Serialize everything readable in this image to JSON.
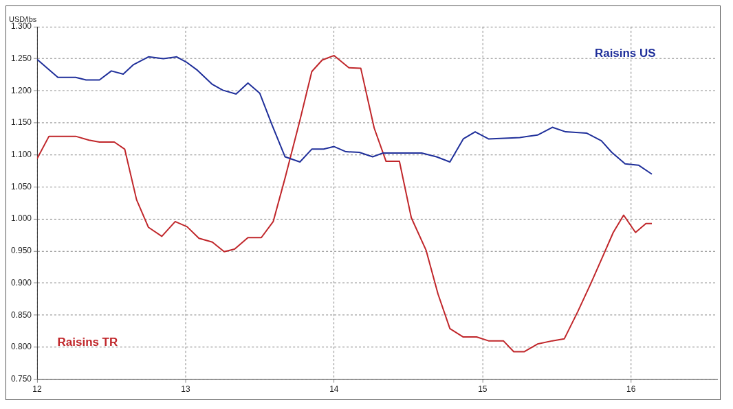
{
  "chart_data": {
    "type": "line",
    "ylabel": "USD/lbs",
    "xlim": [
      12,
      16.58
    ],
    "xticks": [
      12,
      13,
      14,
      15,
      16
    ],
    "ylim": [
      0.75,
      1.3
    ],
    "yticks": [
      {
        "value": 0.75,
        "label": "0.750"
      },
      {
        "value": 0.8,
        "label": "0.800"
      },
      {
        "value": 0.85,
        "label": "0.850"
      },
      {
        "value": 0.9,
        "label": "0.900"
      },
      {
        "value": 0.95,
        "label": "0.950"
      },
      {
        "value": 1.0,
        "label": "1.000"
      },
      {
        "value": 1.05,
        "label": "1.050"
      },
      {
        "value": 1.1,
        "label": "1.100"
      },
      {
        "value": 1.15,
        "label": "1.150"
      },
      {
        "value": 1.2,
        "label": "1.200"
      },
      {
        "value": 1.25,
        "label": "1.250"
      },
      {
        "value": 1.3,
        "label": "1.300"
      }
    ],
    "grid": true,
    "legend": false,
    "marker": "none",
    "line_style": "solid",
    "series": [
      {
        "name": "Raisins US",
        "color": "#1f2f9a",
        "x": [
          12.0,
          12.14,
          12.26,
          12.33,
          12.42,
          12.5,
          12.58,
          12.65,
          12.75,
          12.85,
          12.94,
          13.01,
          13.08,
          13.18,
          13.25,
          13.34,
          13.42,
          13.5,
          13.58,
          13.67,
          13.77,
          13.85,
          13.93,
          14.0,
          14.08,
          14.17,
          14.26,
          14.33,
          14.59,
          14.69,
          14.78,
          14.87,
          14.95,
          15.04,
          15.25,
          15.37,
          15.47,
          15.56,
          15.7,
          15.8,
          15.87,
          15.96,
          16.05,
          16.14
        ],
        "values": [
          1.249,
          1.221,
          1.221,
          1.217,
          1.217,
          1.231,
          1.226,
          1.241,
          1.253,
          1.25,
          1.253,
          1.244,
          1.232,
          1.21,
          1.201,
          1.195,
          1.212,
          1.196,
          1.148,
          1.097,
          1.089,
          1.109,
          1.109,
          1.113,
          1.105,
          1.104,
          1.097,
          1.103,
          1.103,
          1.097,
          1.089,
          1.125,
          1.136,
          1.125,
          1.127,
          1.131,
          1.143,
          1.136,
          1.134,
          1.122,
          1.104,
          1.086,
          1.084,
          1.07
        ]
      },
      {
        "name": "Raisins TR",
        "color": "#c0262a",
        "x": [
          12.0,
          12.08,
          12.26,
          12.35,
          12.42,
          12.52,
          12.59,
          12.67,
          12.75,
          12.84,
          12.93,
          13.01,
          13.09,
          13.18,
          13.26,
          13.33,
          13.42,
          13.51,
          13.59,
          13.67,
          13.77,
          13.85,
          13.92,
          14.0,
          14.1,
          14.18,
          14.27,
          14.35,
          14.44,
          14.52,
          14.62,
          14.7,
          14.78,
          14.87,
          14.96,
          15.04,
          15.14,
          15.21,
          15.28,
          15.37,
          15.47,
          15.55,
          15.64,
          15.73,
          15.81,
          15.88,
          15.95,
          16.03,
          16.1,
          16.14
        ],
        "values": [
          1.094,
          1.129,
          1.129,
          1.123,
          1.12,
          1.12,
          1.109,
          1.03,
          0.987,
          0.973,
          0.996,
          0.988,
          0.97,
          0.964,
          0.949,
          0.953,
          0.971,
          0.971,
          0.996,
          1.064,
          1.154,
          1.23,
          1.248,
          1.255,
          1.236,
          1.235,
          1.142,
          1.09,
          1.09,
          1.002,
          0.951,
          0.883,
          0.829,
          0.816,
          0.816,
          0.81,
          0.81,
          0.793,
          0.793,
          0.805,
          0.81,
          0.813,
          0.855,
          0.9,
          0.942,
          0.979,
          1.006,
          0.979,
          0.993,
          0.993
        ]
      }
    ]
  }
}
